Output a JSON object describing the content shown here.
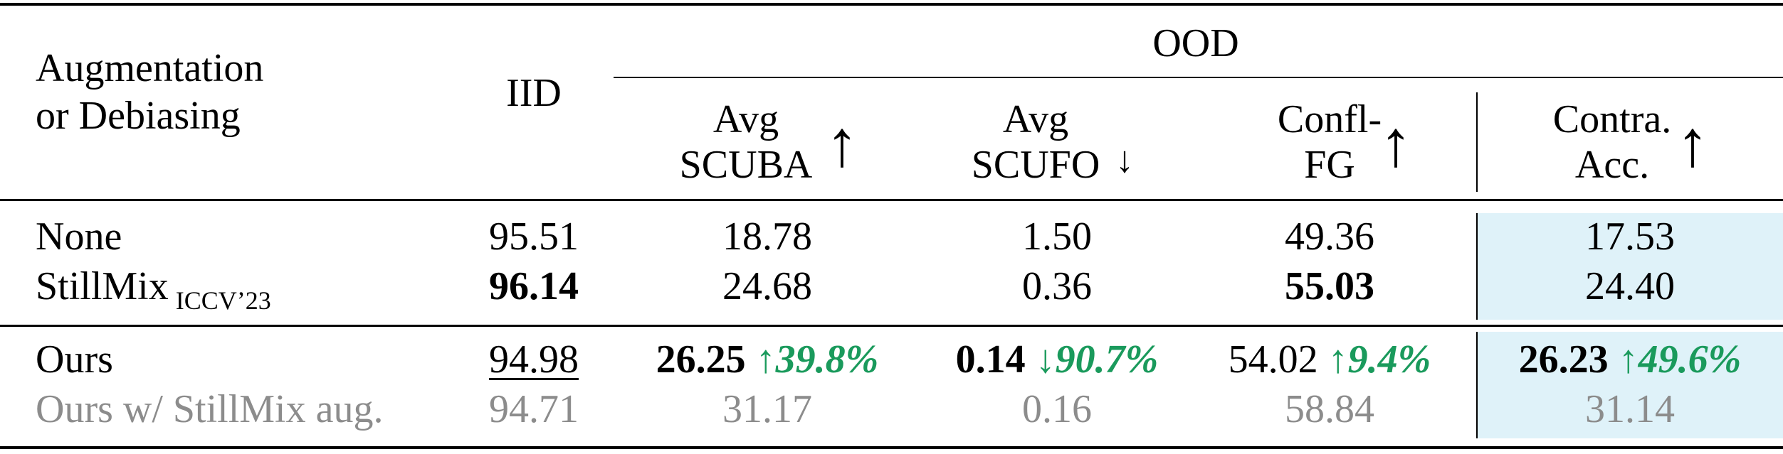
{
  "header": {
    "col0": [
      "Augmentation",
      "or Debiasing"
    ],
    "iid": "IID",
    "ood": "OOD",
    "avg_scuba": [
      "Avg",
      "SCUBA"
    ],
    "avg_scufo": [
      "Avg",
      "SCUFO"
    ],
    "confl_fg": [
      "Confl-",
      "FG"
    ],
    "contra_acc": [
      "Contra.",
      "Acc."
    ],
    "up_arrow": "↑",
    "down_arrow": "↓"
  },
  "rows": [
    {
      "method": "None",
      "iid": "95.51",
      "scuba": "18.78",
      "scufo": "1.50",
      "confl": "49.36",
      "contra": "17.53"
    },
    {
      "method": "StillMix",
      "method_sub": "ICCV’23",
      "iid": "96.14",
      "scuba": "24.68",
      "scufo": "0.36",
      "confl": "55.03",
      "contra": "24.40"
    },
    {
      "method": "Ours",
      "iid": "94.98",
      "scuba": "26.25",
      "scuba_gain": "↑39.8%",
      "scufo": "0.14",
      "scufo_gain": "↓90.7%",
      "confl": "54.02",
      "confl_gain": "↑9.4%",
      "contra": "26.23",
      "contra_gain": "↑49.6%"
    },
    {
      "method": "Ours w/ StillMix aug.",
      "iid": "94.71",
      "scuba": "31.17",
      "scufo": "0.16",
      "confl": "58.84",
      "contra": "31.14"
    }
  ]
}
